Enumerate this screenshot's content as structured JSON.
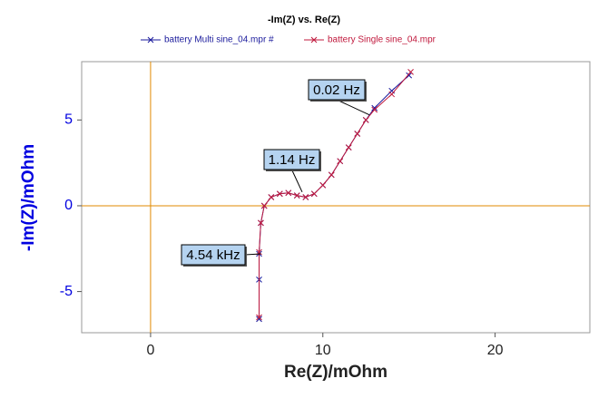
{
  "chart_data": {
    "type": "line",
    "title": "-Im(Z) vs. Re(Z)",
    "x_label": "Re(Z)/mOhm",
    "y_label": "-Im(Z)/mOhm",
    "xlim": [
      -4,
      25.5
    ],
    "ylim": [
      -7.4,
      8.4
    ],
    "xticks": [
      0,
      10,
      20
    ],
    "yticks": [
      -5,
      0,
      5
    ],
    "series": [
      {
        "name": "battery Multi sine_04.mpr #",
        "color": "#1a1a9c",
        "x": [
          6.3,
          6.3,
          6.3,
          6.4,
          6.6,
          7.0,
          7.5,
          8.0,
          8.5,
          9.0,
          9.5,
          10.0,
          10.5,
          11.0,
          11.5,
          12.0,
          12.5,
          13.0,
          14.0,
          15.0
        ],
        "y": [
          -6.6,
          -4.3,
          -2.8,
          -1.0,
          0.0,
          0.5,
          0.7,
          0.75,
          0.6,
          0.5,
          0.7,
          1.2,
          1.8,
          2.6,
          3.4,
          4.2,
          5.0,
          5.7,
          6.7,
          7.6
        ]
      },
      {
        "name": "battery Single sine_04.mpr",
        "color": "#c0183c",
        "x": [
          6.3,
          6.3,
          6.4,
          6.6,
          7.0,
          7.5,
          8.0,
          8.5,
          9.0,
          9.5,
          10.0,
          10.5,
          11.0,
          11.5,
          12.0,
          12.5,
          13.0,
          14.0,
          15.1
        ],
        "y": [
          -6.5,
          -2.7,
          -1.0,
          0.0,
          0.5,
          0.7,
          0.75,
          0.6,
          0.5,
          0.7,
          1.2,
          1.8,
          2.6,
          3.4,
          4.2,
          5.0,
          5.6,
          6.5,
          7.8
        ]
      }
    ],
    "annotations": [
      {
        "text": "0.02 Hz",
        "x": 12.7,
        "y": 5.3
      },
      {
        "text": "1.14 Hz",
        "x": 8.8,
        "y": 0.8
      },
      {
        "text": "4.54 kHz",
        "x": 6.4,
        "y": -2.8
      }
    ],
    "axis_color": "#e08a00",
    "tick_color": "#0000e0"
  }
}
